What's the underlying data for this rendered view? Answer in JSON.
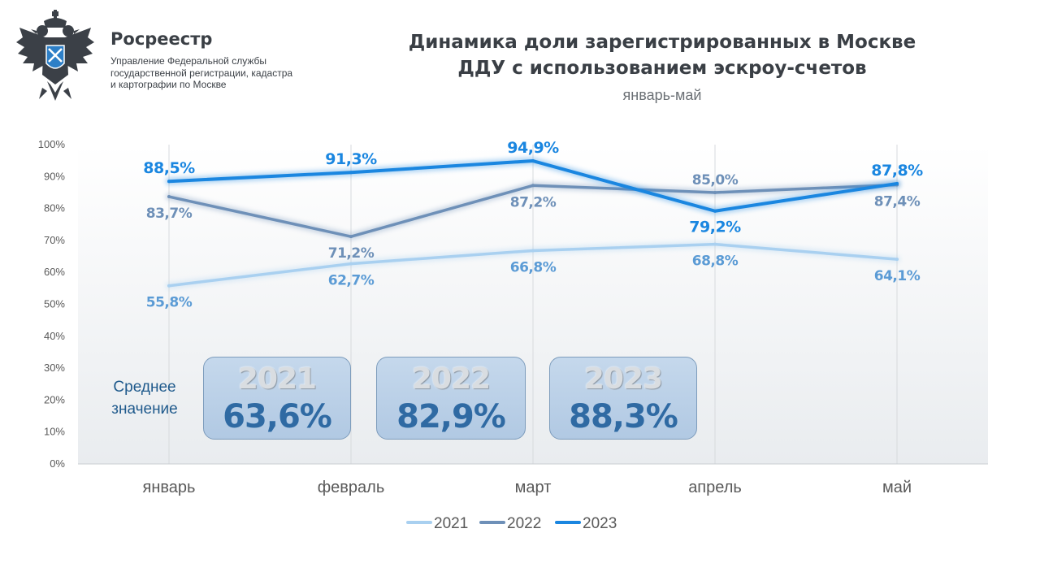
{
  "header": {
    "org_name": "Росреестр",
    "org_sub": "Управление Федеральной службы государственной регистрации, кадастра и картографии по Москве",
    "title_line1": "Динамика доли зарегистрированных в Москве",
    "title_line2": "ДДУ с использованием эскроу-счетов",
    "subtitle": "январь-май"
  },
  "averages": {
    "label": "Среднее значение",
    "items": [
      {
        "year": "2021",
        "value": "63,6%"
      },
      {
        "year": "2022",
        "value": "82,9%"
      },
      {
        "year": "2023",
        "value": "88,3%"
      }
    ]
  },
  "chart_data": {
    "type": "line",
    "categories": [
      "январь",
      "февраль",
      "март",
      "апрель",
      "май"
    ],
    "ylim": [
      0,
      100
    ],
    "yticks": [
      "0%",
      "10%",
      "20%",
      "30%",
      "40%",
      "50%",
      "60%",
      "70%",
      "80%",
      "90%",
      "100%"
    ],
    "grid": "vertical",
    "legend_position": "bottom",
    "series": [
      {
        "name": "2021",
        "color": "#a9d0f0",
        "values": [
          55.8,
          62.7,
          66.8,
          68.8,
          64.1
        ],
        "labels": [
          "55,8%",
          "62,7%",
          "66,8%",
          "68,8%",
          "64,1%"
        ]
      },
      {
        "name": "2022",
        "color": "#6e90b8",
        "values": [
          83.7,
          71.2,
          87.2,
          85.0,
          87.4
        ],
        "labels": [
          "83,7%",
          "71,2%",
          "87,2%",
          "85,0%",
          "87,4%"
        ]
      },
      {
        "name": "2023",
        "color": "#1a86e0",
        "values": [
          88.5,
          91.3,
          94.9,
          79.2,
          87.8
        ],
        "labels": [
          "88,5%",
          "91,3%",
          "94,9%",
          "79,2%",
          "87,8%"
        ]
      }
    ]
  }
}
